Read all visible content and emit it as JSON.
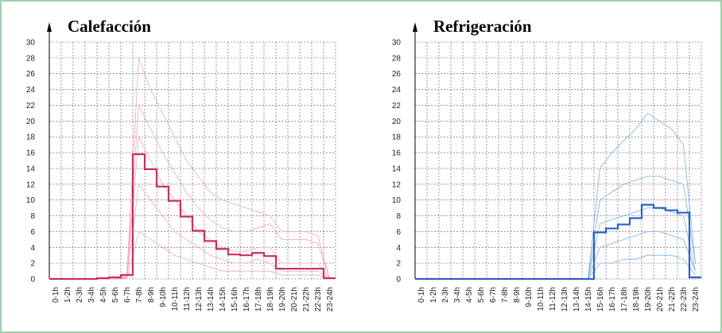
{
  "chart_data": [
    {
      "type": "line",
      "title": "Calefacción",
      "categories": [
        "0-1h",
        "1-2h",
        "2-3h",
        "3-4h",
        "4-5h",
        "5-6h",
        "6-7h",
        "7-8h",
        "8-9h",
        "9-10h",
        "10-11h",
        "11-12h",
        "12-13h",
        "13-14h",
        "14-15h",
        "15-16h",
        "16-17h",
        "17-18h",
        "18-19h",
        "19-20h",
        "20-21h",
        "21-22h",
        "22-23h",
        "23-24h"
      ],
      "series": [
        {
          "color": "#f2a6bc",
          "width": 0.8,
          "values": [
            0,
            0,
            0,
            0,
            0,
            0,
            0.5,
            28,
            24,
            21,
            18,
            15,
            13,
            11,
            10,
            9.5,
            9,
            8.5,
            8,
            6,
            6,
            6,
            5.5,
            0
          ]
        },
        {
          "color": "#f2a6bc",
          "width": 0.8,
          "values": [
            0,
            0,
            0,
            0,
            0,
            0,
            0.3,
            22,
            19,
            16,
            13.5,
            11,
            9,
            7.5,
            6.5,
            6,
            6,
            6.5,
            7,
            5,
            5,
            5,
            4.5,
            0
          ]
        },
        {
          "color": "#f2a6bc",
          "width": 0.8,
          "values": [
            0,
            0,
            0,
            0,
            0,
            0,
            0.2,
            18,
            15,
            12,
            10,
            8,
            6,
            5,
            4,
            3.5,
            3.5,
            4,
            4,
            2,
            2,
            2,
            2,
            0
          ]
        },
        {
          "color": "#f2a6bc",
          "width": 0.8,
          "values": [
            0,
            0,
            0,
            0,
            0,
            0,
            0.1,
            12,
            10,
            8,
            6,
            5,
            4,
            3,
            2.5,
            2,
            2,
            2.5,
            2,
            1,
            1,
            1,
            1,
            0
          ]
        },
        {
          "color": "#f2a6bc",
          "width": 0.8,
          "values": [
            0,
            0,
            0,
            0,
            0,
            0,
            0,
            6,
            5,
            4,
            3,
            2.5,
            2,
            1.5,
            1,
            1,
            1,
            1,
            1,
            0.5,
            0.5,
            0.5,
            0.5,
            0
          ]
        },
        {
          "color": "#c8305f",
          "width": 2.2,
          "step": true,
          "values": [
            0,
            0,
            0,
            0,
            0.1,
            0.2,
            0.5,
            15.8,
            13.9,
            11.7,
            9.9,
            7.9,
            6.1,
            4.8,
            3.8,
            3.1,
            3.0,
            3.3,
            2.9,
            1.3,
            1.3,
            1.3,
            1.3,
            0.1
          ]
        }
      ],
      "ylim": [
        0,
        30
      ],
      "yticks": [
        0,
        2,
        4,
        6,
        8,
        10,
        12,
        14,
        16,
        18,
        20,
        22,
        24,
        26,
        28,
        30
      ],
      "grid": true
    },
    {
      "type": "line",
      "title": "Refrigeración",
      "categories": [
        "0-1h",
        "1-2h",
        "2-3h",
        "3-4h",
        "4-5h",
        "5-6h",
        "6-7h",
        "7-8h",
        "8-9h",
        "9-10h",
        "10-11h",
        "11-12h",
        "12-13h",
        "13-14h",
        "14-15h",
        "15-16h",
        "16-17h",
        "17-18h",
        "18-19h",
        "19-20h",
        "20-21h",
        "21-22h",
        "22-23h",
        "23-24h"
      ],
      "series": [
        {
          "color": "#7aaee6",
          "width": 0.8,
          "values": [
            0,
            0,
            0,
            0,
            0,
            0,
            0,
            0,
            0,
            0,
            0,
            0,
            0,
            0,
            0,
            14,
            16,
            17.5,
            19,
            21,
            20,
            19,
            17,
            2
          ]
        },
        {
          "color": "#7aaee6",
          "width": 0.8,
          "values": [
            0,
            0,
            0,
            0,
            0,
            0,
            0,
            0,
            0,
            0,
            0,
            0,
            0,
            0,
            0,
            10,
            11,
            12,
            12.5,
            13,
            13,
            12.5,
            12,
            2
          ]
        },
        {
          "color": "#7aaee6",
          "width": 0.8,
          "values": [
            0,
            0,
            0,
            0,
            0,
            0,
            0,
            0,
            0,
            0,
            0,
            0,
            0,
            0,
            0,
            7,
            7.5,
            8,
            8.5,
            9,
            9,
            8.5,
            8,
            1
          ]
        },
        {
          "color": "#7aaee6",
          "width": 0.8,
          "values": [
            0,
            0,
            0,
            0,
            0,
            0,
            0,
            0,
            0,
            0,
            0,
            0,
            0,
            0,
            0,
            4,
            4.5,
            5,
            5.5,
            6,
            6,
            5.5,
            5,
            1
          ]
        },
        {
          "color": "#7aaee6",
          "width": 0.8,
          "values": [
            0,
            0,
            0,
            0,
            0,
            0,
            0,
            0,
            0,
            0,
            0,
            0,
            0,
            0,
            0,
            2,
            2,
            2.5,
            2.5,
            3,
            3,
            3,
            2.5,
            0.5
          ]
        },
        {
          "color": "#2a62c4",
          "width": 2.2,
          "step": true,
          "values": [
            0,
            0,
            0,
            0,
            0,
            0,
            0,
            0,
            0,
            0,
            0,
            0,
            0,
            0,
            0,
            5.9,
            6.4,
            6.9,
            7.7,
            9.4,
            9.0,
            8.7,
            8.4,
            0.2
          ]
        }
      ],
      "ylim": [
        0,
        30
      ],
      "yticks": [
        0,
        2,
        4,
        6,
        8,
        10,
        12,
        14,
        16,
        18,
        20,
        22,
        24,
        26,
        28,
        30
      ],
      "grid": true
    }
  ]
}
